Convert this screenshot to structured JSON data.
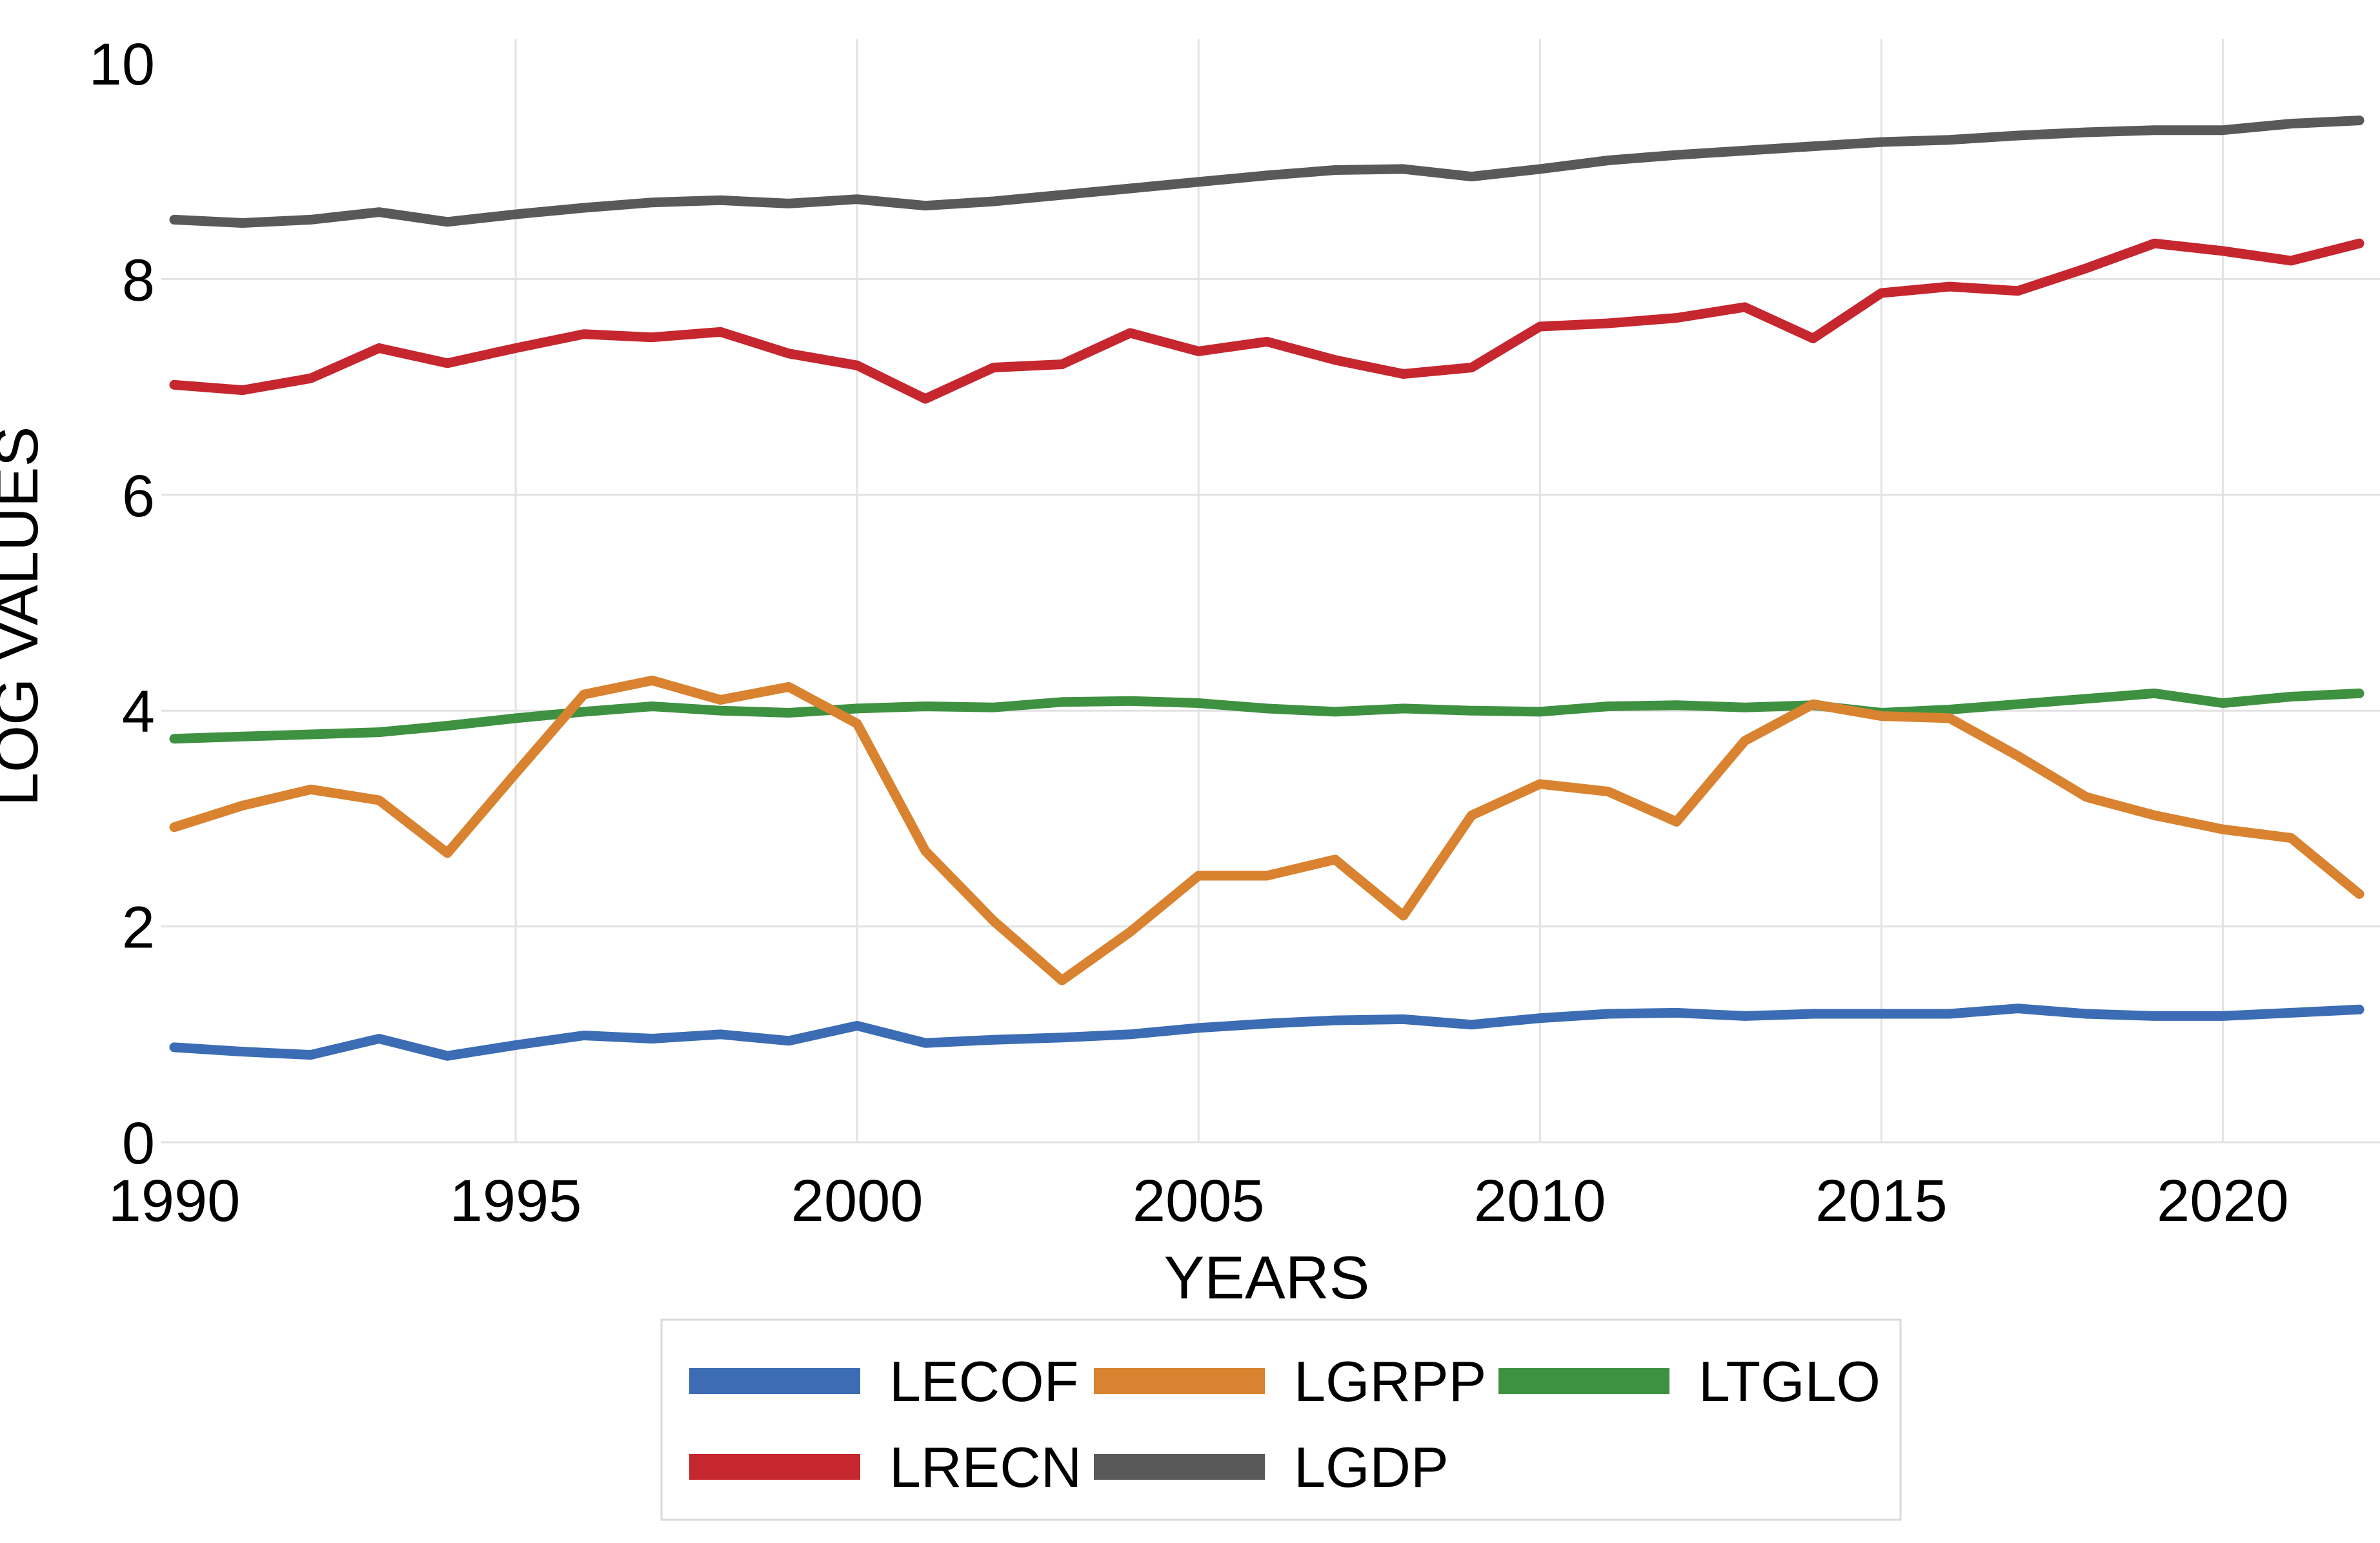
{
  "chart_data": {
    "type": "line",
    "title": "",
    "xlabel": "YEARS",
    "ylabel": "LOG VALUES",
    "x": [
      1990,
      1991,
      1992,
      1993,
      1994,
      1995,
      1996,
      1997,
      1998,
      1999,
      2000,
      2001,
      2002,
      2003,
      2004,
      2005,
      2006,
      2007,
      2008,
      2009,
      2010,
      2011,
      2012,
      2013,
      2014,
      2015,
      2016,
      2017,
      2018,
      2019,
      2020,
      2021,
      2022
    ],
    "series": [
      {
        "name": "LECOF",
        "color": "#3B6CB4",
        "values": [
          0.88,
          0.84,
          0.81,
          0.96,
          0.8,
          0.9,
          0.99,
          0.96,
          1.0,
          0.94,
          1.08,
          0.92,
          0.95,
          0.97,
          1.0,
          1.06,
          1.1,
          1.13,
          1.14,
          1.09,
          1.15,
          1.19,
          1.2,
          1.17,
          1.19,
          1.19,
          1.19,
          1.24,
          1.19,
          1.17,
          1.17,
          1.2,
          1.23
        ]
      },
      {
        "name": "LGRPP",
        "color": "#D9822F",
        "values": [
          2.92,
          3.12,
          3.27,
          3.17,
          2.68,
          3.42,
          4.15,
          4.28,
          4.1,
          4.22,
          3.88,
          2.7,
          2.05,
          1.5,
          1.95,
          2.47,
          2.47,
          2.62,
          2.1,
          3.03,
          3.32,
          3.25,
          2.97,
          3.72,
          4.06,
          3.95,
          3.93,
          3.58,
          3.2,
          3.03,
          2.9,
          2.82,
          2.3
        ]
      },
      {
        "name": "LTGLO",
        "color": "#3F9142",
        "values": [
          3.74,
          3.76,
          3.78,
          3.8,
          3.86,
          3.93,
          3.99,
          4.04,
          4.0,
          3.98,
          4.02,
          4.04,
          4.03,
          4.08,
          4.09,
          4.07,
          4.02,
          3.99,
          4.02,
          4.0,
          3.99,
          4.04,
          4.05,
          4.03,
          4.05,
          3.98,
          4.01,
          4.06,
          4.11,
          4.16,
          4.07,
          4.13,
          4.16
        ]
      },
      {
        "name": "LRECN",
        "color": "#C6262E",
        "values": [
          7.02,
          6.97,
          7.08,
          7.36,
          7.22,
          7.36,
          7.49,
          7.46,
          7.51,
          7.31,
          7.2,
          6.89,
          7.18,
          7.21,
          7.5,
          7.33,
          7.42,
          7.25,
          7.12,
          7.18,
          7.56,
          7.59,
          7.64,
          7.74,
          7.45,
          7.87,
          7.93,
          7.89,
          8.1,
          8.33,
          8.26,
          8.17,
          8.33
        ]
      },
      {
        "name": "LGDP",
        "color": "#595959",
        "values": [
          8.55,
          8.52,
          8.55,
          8.62,
          8.53,
          8.6,
          8.66,
          8.71,
          8.73,
          8.7,
          8.74,
          8.68,
          8.72,
          8.78,
          8.84,
          8.9,
          8.96,
          9.01,
          9.02,
          8.95,
          9.02,
          9.1,
          9.15,
          9.19,
          9.23,
          9.27,
          9.29,
          9.33,
          9.36,
          9.38,
          9.38,
          9.44,
          9.47
        ]
      }
    ],
    "draw_order": [
      "LECOF",
      "LTGLO",
      "LGRPP",
      "LRECN",
      "LGDP"
    ],
    "ylim": [
      0,
      10
    ],
    "yticks": [
      0,
      2,
      4,
      6,
      8,
      10
    ],
    "ygrid_values": [
      0,
      2,
      4,
      6,
      8
    ],
    "xticks": [
      1990,
      1995,
      2000,
      2005,
      2010,
      2015,
      2020
    ],
    "xgrid_values": [
      1995,
      2000,
      2005,
      2010,
      2015,
      2020
    ],
    "grid": true,
    "legend_position": "bottom",
    "legend_rows": [
      [
        "LECOF",
        "LGRPP",
        "LTGLO"
      ],
      [
        "LRECN",
        "LGDP"
      ]
    ]
  },
  "colors": {
    "background": "#FFFFFF",
    "gridline": "#E2E2E2",
    "legend_border": "#D9D9D9",
    "text": "#000000"
  }
}
